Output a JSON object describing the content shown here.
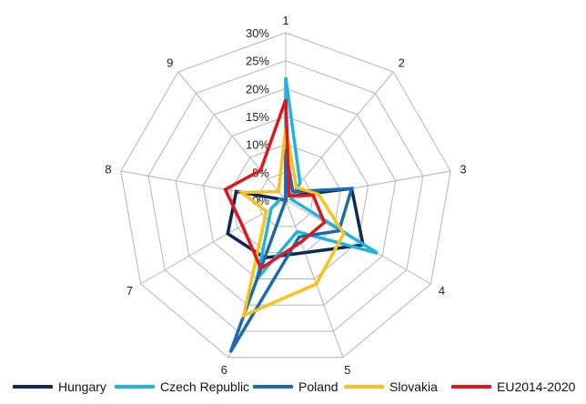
{
  "chart_data": {
    "type": "radar",
    "categories": [
      "1",
      "2",
      "3",
      "4",
      "5",
      "6",
      "7",
      "8",
      "9"
    ],
    "r_ticks": [
      "0%",
      "5%",
      "10%",
      "15%",
      "20%",
      "25%",
      "30%"
    ],
    "r_range": [
      0,
      30
    ],
    "grid": true,
    "legend_position": "bottom",
    "series": [
      {
        "name": "Hungary",
        "color": "#0c2a55",
        "values": [
          10,
          1,
          12,
          16,
          10,
          11,
          12,
          9,
          0
        ]
      },
      {
        "name": "Czech Republic",
        "color": "#1fb4e0",
        "values": [
          22,
          4,
          1,
          19,
          6,
          15,
          3,
          1,
          0
        ]
      },
      {
        "name": "Poland",
        "color": "#1a6aad",
        "values": [
          9,
          2,
          12,
          11,
          7,
          29,
          0,
          1,
          0
        ]
      },
      {
        "name": "Slovakia",
        "color": "#f7c21b",
        "values": [
          13,
          3,
          6,
          12,
          16,
          22,
          4,
          8,
          2
        ]
      },
      {
        "name": "EU2014-2020",
        "color": "#e0161b",
        "values": [
          18,
          1,
          5,
          8,
          8,
          13,
          9,
          11,
          7
        ]
      }
    ]
  }
}
